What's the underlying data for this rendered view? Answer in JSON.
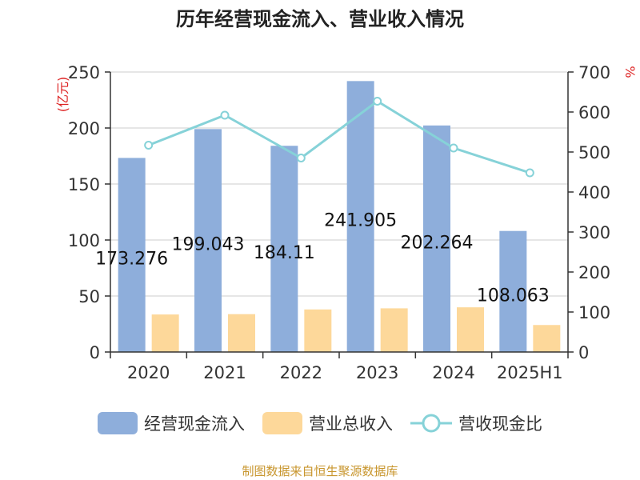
{
  "chart_data": {
    "type": "bar",
    "title": "历年经营现金流入、营业收入情况",
    "categories": [
      "2020",
      "2021",
      "2022",
      "2023",
      "2024",
      "2025H1"
    ],
    "y_left": {
      "label": "(亿元)",
      "ylim": [
        0,
        250
      ],
      "ticks": [
        0,
        50,
        100,
        150,
        200,
        250
      ]
    },
    "y_right": {
      "label": "%",
      "ylim": [
        0,
        700
      ],
      "ticks": [
        0,
        100,
        200,
        300,
        400,
        500,
        600,
        700
      ]
    },
    "series": [
      {
        "name": "经营现金流入",
        "type": "bar",
        "axis": "left",
        "color": "#8eaedb",
        "values": [
          173.276,
          199.043,
          184.11,
          241.905,
          202.264,
          108.063
        ],
        "labels": [
          "173.276",
          "199.043",
          "184.11",
          "241.905",
          "202.264",
          "108.063"
        ]
      },
      {
        "name": "营业总收入",
        "type": "bar",
        "axis": "left",
        "color": "#fdd89a",
        "values": [
          33.5,
          33.8,
          38.0,
          39.0,
          39.9,
          24.1
        ]
      },
      {
        "name": "营收现金比",
        "type": "line",
        "axis": "right",
        "color": "#86d2d8",
        "values": [
          517,
          592,
          485,
          627,
          510,
          448
        ]
      }
    ],
    "grid": true,
    "legend_position": "bottom"
  },
  "source": "制图数据来自恒生聚源数据库"
}
